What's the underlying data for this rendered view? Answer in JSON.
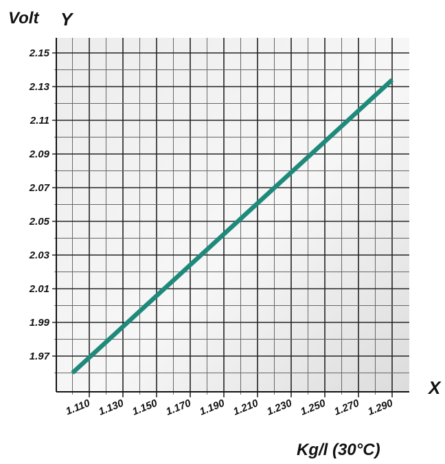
{
  "chart_data": {
    "type": "line",
    "title": "",
    "ylabel": "Volt",
    "y_axis_letter": "Y",
    "x_axis_letter": "X",
    "xlabel": "Kg/l (30°C)",
    "x_tick_labels": [
      "1.110",
      "1.130",
      "1.150",
      "1.170",
      "1.190",
      "1.210",
      "1.230",
      "1.250",
      "1.270",
      "1.290"
    ],
    "y_tick_labels": [
      "2.15",
      "2.13",
      "2.11",
      "2.09",
      "2.07",
      "2.05",
      "2.03",
      "2.01",
      "1.99",
      "1.97"
    ],
    "xlim": [
      1.09,
      1.3
    ],
    "ylim": [
      1.95,
      2.15
    ],
    "grid": true,
    "series": [
      {
        "color": "#1f8a7a",
        "x": [
          1.1,
          1.29
        ],
        "y": [
          1.96,
          2.134
        ]
      }
    ]
  }
}
